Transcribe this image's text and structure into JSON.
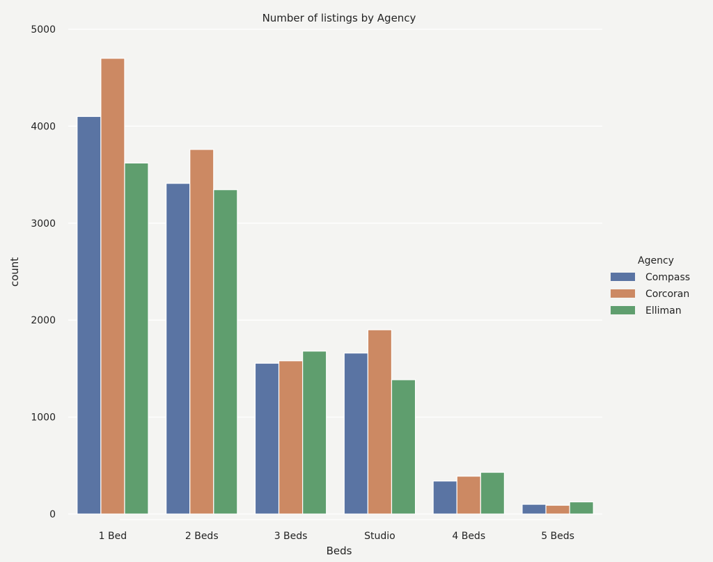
{
  "chart_data": {
    "type": "bar",
    "title": "Number of listings by Agency",
    "xlabel": "Beds",
    "ylabel": "count",
    "categories": [
      "1 Bed",
      "2 Beds",
      "3 Beds",
      "Studio",
      "4 Beds",
      "5 Beds"
    ],
    "series": [
      {
        "name": "Compass",
        "color": "#5a74a3",
        "values": [
          4100,
          3410,
          1555,
          1660,
          340,
          100
        ]
      },
      {
        "name": "Corcoran",
        "color": "#cc8963",
        "values": [
          4700,
          3760,
          1580,
          1900,
          390,
          90
        ]
      },
      {
        "name": "Elliman",
        "color": "#5f9e6e",
        "values": [
          3620,
          3345,
          1680,
          1385,
          430,
          125
        ]
      }
    ],
    "ylim": [
      0,
      5000
    ],
    "yticks": [
      0,
      1000,
      2000,
      3000,
      4000,
      5000
    ],
    "grid": true,
    "legend": {
      "title": "Agency",
      "position": "right"
    }
  }
}
